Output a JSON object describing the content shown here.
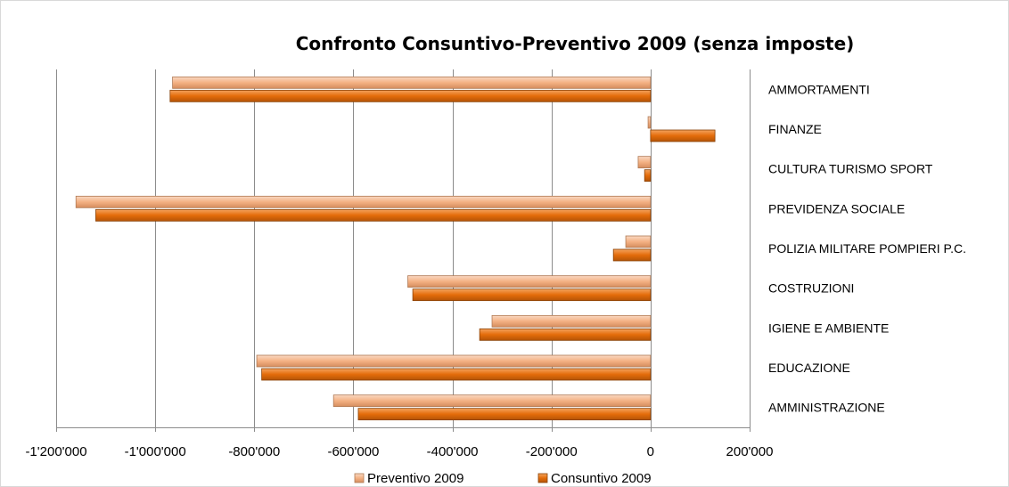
{
  "colors": {
    "preventivo": "#F4B183",
    "consuntivo": "#E46C0A",
    "gridline": "#8C8C8C",
    "axis": "#8C8C8C"
  },
  "chart_data": {
    "type": "bar",
    "orientation": "horizontal",
    "title": "Confronto Consuntivo-Preventivo 2009 (senza imposte)",
    "xlabel": "",
    "ylabel": "",
    "xlim": [
      -1200000,
      200000
    ],
    "xticks": [
      -1200000,
      -1000000,
      -800000,
      -600000,
      -400000,
      -200000,
      0,
      200000
    ],
    "xtick_labels": [
      "-1'200'000",
      "-1'000'000",
      "-800'000",
      "-600'000",
      "-400'000",
      "-200'000",
      "0",
      "200'000"
    ],
    "grid": "vertical major gridlines",
    "legend_position": "bottom",
    "categories": [
      "AMMORTAMENTI",
      "FINANZE",
      "CULTURA TURISMO  SPORT",
      "PREVIDENZA  SOCIALE",
      "POLIZIA MILITARE  POMPIERI P.C.",
      "COSTRUZIONI",
      "IGIENE  E AMBIENTE",
      "EDUCAZIONE",
      "AMMINISTRAZIONE"
    ],
    "series": [
      {
        "name": "Preventivo 2009",
        "color_key": "preventivo",
        "values": [
          -965000,
          -5000,
          -25000,
          -1160000,
          -50000,
          -490000,
          -320000,
          -795000,
          -640000
        ]
      },
      {
        "name": "Consuntivo 2009",
        "color_key": "consuntivo",
        "values": [
          -970000,
          130000,
          -12000,
          -1120000,
          -75000,
          -480000,
          -345000,
          -785000,
          -590000
        ]
      }
    ]
  }
}
